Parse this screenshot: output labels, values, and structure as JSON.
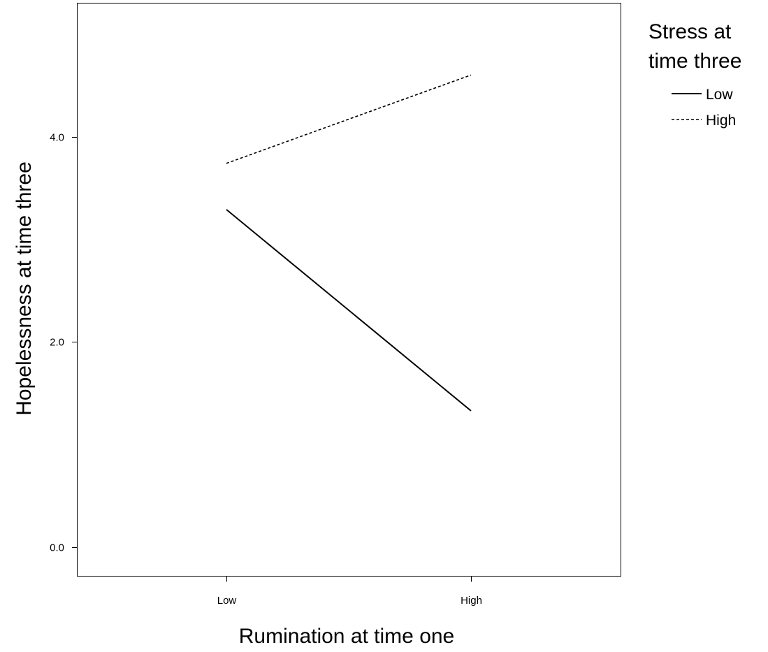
{
  "chart_data": {
    "type": "line",
    "title": "",
    "xlabel": "Rumination at time one",
    "ylabel": "Hopelessness at time three",
    "categories": [
      "Low",
      "High"
    ],
    "ylim": [
      -0.28,
      5.3
    ],
    "yticks": [
      0.0,
      2.0,
      4.0
    ],
    "ytick_labels": [
      "0.0",
      "2.0",
      "4.0"
    ],
    "grid": false,
    "legend": {
      "title": "Stress at time three",
      "title_lines": [
        "Stress at",
        "time three"
      ],
      "placement": "outside-right-top"
    },
    "series": [
      {
        "name": "Low",
        "values": [
          3.29,
          1.33
        ],
        "line_style": "solid",
        "color": "#000000"
      },
      {
        "name": "High",
        "values": [
          3.74,
          4.6
        ],
        "line_style": "dashed",
        "color": "#000000"
      }
    ]
  }
}
